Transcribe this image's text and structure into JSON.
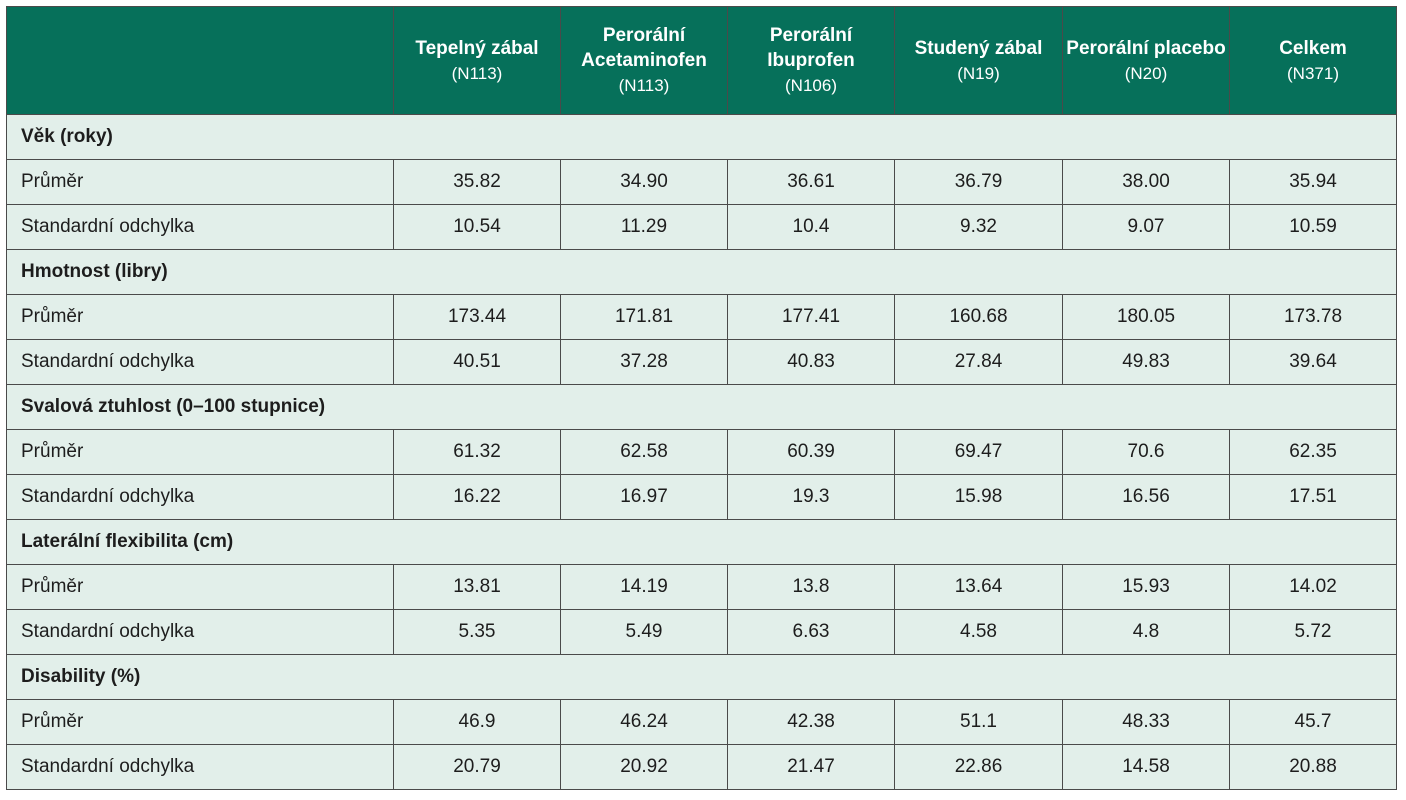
{
  "columns": [
    {
      "name": "Tepelný zábal",
      "n": "(N113)"
    },
    {
      "name": "Perorální Acetaminofen",
      "n": "(N113)"
    },
    {
      "name": "Perorální Ibuprofen",
      "n": "(N106)"
    },
    {
      "name": "Studený zábal",
      "n": "(N19)"
    },
    {
      "name": "Perorální placebo",
      "n": "(N20)"
    },
    {
      "name": "Celkem",
      "n": "(N371)"
    }
  ],
  "sections": [
    {
      "title": "Věk (roky)",
      "rows": [
        {
          "label": "Průměr",
          "values": [
            "35.82",
            "34.90",
            "36.61",
            "36.79",
            "38.00",
            "35.94"
          ]
        },
        {
          "label": "Standardní odchylka",
          "values": [
            "10.54",
            "11.29",
            "10.4",
            "9.32",
            "9.07",
            "10.59"
          ]
        }
      ]
    },
    {
      "title": "Hmotnost (libry)",
      "rows": [
        {
          "label": "Průměr",
          "values": [
            "173.44",
            "171.81",
            "177.41",
            "160.68",
            "180.05",
            "173.78"
          ]
        },
        {
          "label": "Standardní odchylka",
          "values": [
            "40.51",
            "37.28",
            "40.83",
            "27.84",
            "49.83",
            "39.64"
          ]
        }
      ]
    },
    {
      "title": "Svalová ztuhlost (0–100 stupnice)",
      "rows": [
        {
          "label": "Průměr",
          "values": [
            "61.32",
            "62.58",
            "60.39",
            "69.47",
            "70.6",
            "62.35"
          ]
        },
        {
          "label": "Standardní odchylka",
          "values": [
            "16.22",
            "16.97",
            "19.3",
            "15.98",
            "16.56",
            "17.51"
          ]
        }
      ]
    },
    {
      "title": "Laterální flexibilita (cm)",
      "rows": [
        {
          "label": "Průměr",
          "values": [
            "13.81",
            "14.19",
            "13.8",
            "13.64",
            "15.93",
            "14.02"
          ]
        },
        {
          "label": "Standardní odchylka",
          "values": [
            "5.35",
            "5.49",
            "6.63",
            "4.58",
            "4.8",
            "5.72"
          ]
        }
      ]
    },
    {
      "title": "Disability (%)",
      "rows": [
        {
          "label": "Průměr",
          "values": [
            "46.9",
            "46.24",
            "42.38",
            "51.1",
            "48.33",
            "45.7"
          ]
        },
        {
          "label": "Standardní odchylka",
          "values": [
            "20.79",
            "20.92",
            "21.47",
            "22.86",
            "14.58",
            "20.88"
          ]
        }
      ]
    }
  ],
  "colors": {
    "header_bg": "#06705a",
    "header_text": "#ffffff",
    "cell_bg": "#e2efea",
    "border": "#4a4a4a"
  }
}
